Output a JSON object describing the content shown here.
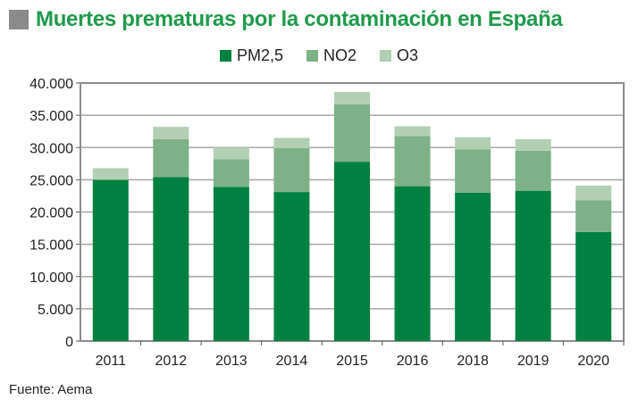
{
  "chart_data": {
    "type": "bar",
    "stacked": true,
    "title": "Muertes prematuras por la contaminación en España",
    "categories": [
      "2011",
      "2012",
      "2013",
      "2014",
      "2015",
      "2016",
      "2018",
      "2019",
      "2020"
    ],
    "series": [
      {
        "name": "PM2,5",
        "color": "#00813f",
        "values": [
          25000,
          25400,
          23900,
          23100,
          27800,
          24000,
          23000,
          23300,
          16900
        ]
      },
      {
        "name": "NO2",
        "color": "#7db187",
        "values": [
          0,
          5900,
          4300,
          6800,
          8900,
          7800,
          6700,
          6200,
          4900
        ]
      },
      {
        "name": "O3",
        "color": "#b2cfb4",
        "values": [
          1800,
          1900,
          1800,
          1600,
          1900,
          1500,
          1900,
          1800,
          2300
        ]
      }
    ],
    "ylim": [
      0,
      40000
    ],
    "yticks": [
      "0",
      "5.000",
      "10.000",
      "15.000",
      "20.000",
      "25.000",
      "30.000",
      "35.000",
      "40.000"
    ],
    "grid": true,
    "legend": "top"
  },
  "source": "Fuente: Aema"
}
